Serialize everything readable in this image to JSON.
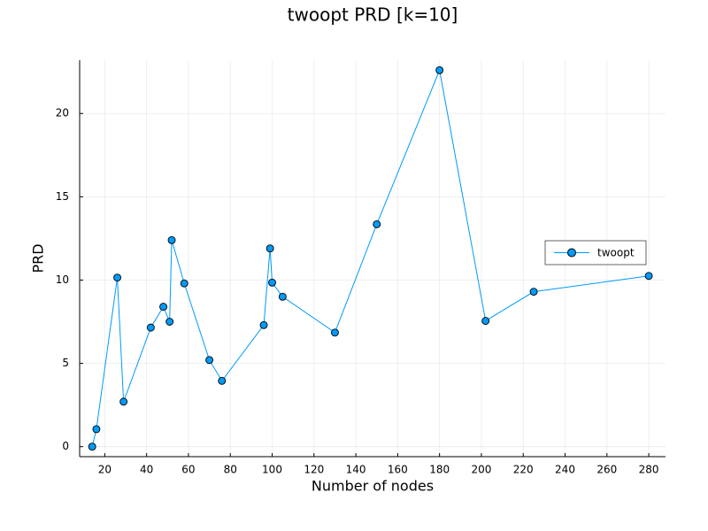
{
  "chart_data": {
    "type": "line",
    "title": "twoopt PRD [k=10]",
    "xlabel": "Number of nodes",
    "ylabel": "PRD",
    "xlim": [
      8,
      288
    ],
    "ylim": [
      -0.6,
      23.2
    ],
    "xticks": [
      20,
      40,
      60,
      80,
      100,
      120,
      140,
      160,
      180,
      200,
      220,
      240,
      260,
      280
    ],
    "yticks": [
      0,
      5,
      10,
      15,
      20
    ],
    "grid": true,
    "legend_position": "right",
    "series": [
      {
        "name": "twoopt",
        "color": "#009AF9",
        "marker": "circle",
        "points": [
          {
            "x": 14,
            "y": 0.0
          },
          {
            "x": 16,
            "y": 1.05
          },
          {
            "x": 26,
            "y": 10.15
          },
          {
            "x": 29,
            "y": 2.7
          },
          {
            "x": 42,
            "y": 7.15
          },
          {
            "x": 48,
            "y": 8.4
          },
          {
            "x": 51,
            "y": 7.5
          },
          {
            "x": 52,
            "y": 12.4
          },
          {
            "x": 58,
            "y": 9.8
          },
          {
            "x": 70,
            "y": 5.2
          },
          {
            "x": 76,
            "y": 3.95
          },
          {
            "x": 96,
            "y": 7.3
          },
          {
            "x": 99,
            "y": 11.9
          },
          {
            "x": 100,
            "y": 9.85
          },
          {
            "x": 105,
            "y": 9.0
          },
          {
            "x": 130,
            "y": 6.85
          },
          {
            "x": 150,
            "y": 13.35
          },
          {
            "x": 180,
            "y": 22.6
          },
          {
            "x": 202,
            "y": 7.55
          },
          {
            "x": 225,
            "y": 9.3
          },
          {
            "x": 280,
            "y": 10.25
          }
        ]
      }
    ]
  }
}
